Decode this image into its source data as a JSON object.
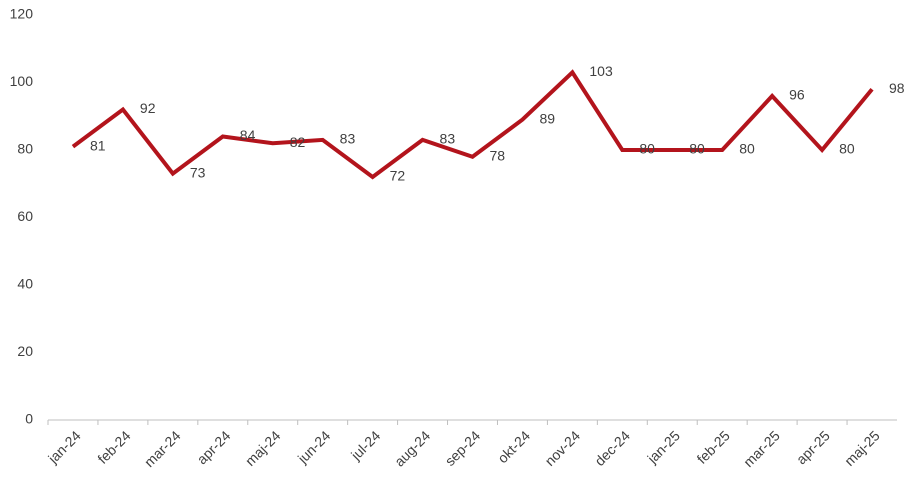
{
  "chart_data": {
    "type": "line",
    "categories": [
      "jan-24",
      "feb-24",
      "mar-24",
      "apr-24",
      "maj-24",
      "jun-24",
      "jul-24",
      "aug-24",
      "sep-24",
      "okt-24",
      "nov-24",
      "dec-24",
      "jan-25",
      "feb-25",
      "mar-25",
      "apr-25",
      "maj-25"
    ],
    "series": [
      {
        "color": "#b3141c",
        "values": [
          81,
          92,
          73,
          84,
          82,
          83,
          72,
          83,
          78,
          89,
          103,
          80,
          80,
          80,
          96,
          80,
          98
        ]
      }
    ],
    "ylim": [
      0,
      120
    ],
    "yticks": [
      0,
      20,
      40,
      60,
      80,
      100,
      120
    ],
    "grid": false
  }
}
